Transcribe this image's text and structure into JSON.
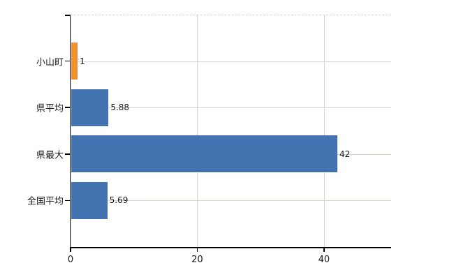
{
  "chart_data": {
    "type": "bar",
    "orientation": "horizontal",
    "title": "",
    "xlabel": "",
    "ylabel": "",
    "categories": [
      "小山町",
      "県平均",
      "県最大",
      "全国平均"
    ],
    "values": [
      1,
      5.88,
      42,
      5.69
    ],
    "value_labels": [
      "1",
      "5.88",
      "42",
      "5.69"
    ],
    "bar_colors": [
      "#F0902E",
      "#4272B0",
      "#4272B0",
      "#4272B0"
    ],
    "xlim": [
      0,
      50.6
    ],
    "xticks": [
      0,
      20,
      40
    ],
    "xtick_labels": [
      "0",
      "20",
      "40"
    ],
    "grid": true,
    "legend": "none",
    "highlight_color": "#F0902E",
    "base_color": "#4272B0"
  },
  "colors": {
    "background": "#ffffff",
    "gridline": "#d3dacd",
    "axis": "#000000",
    "top_border": "#d2d2d2",
    "text": "#1a1a1a"
  }
}
